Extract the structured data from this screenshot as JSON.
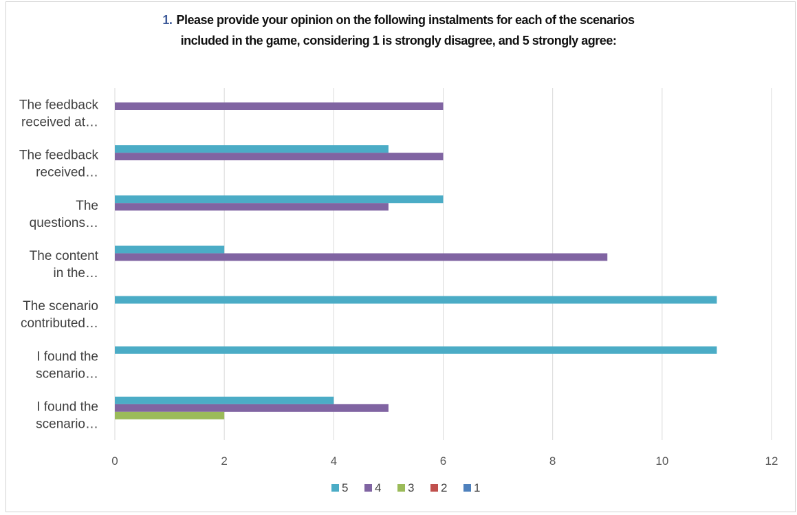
{
  "chart_data": {
    "type": "bar",
    "orientation": "horizontal",
    "title_number": "1.",
    "title_lines": [
      "Please provide your opinion on the following instalments for each of the scenarios",
      "included in the game, considering 1 is strongly disagree, and 5 strongly agree:"
    ],
    "categories": [
      [
        "The feedback",
        "received at…"
      ],
      [
        "The feedback",
        "received…"
      ],
      [
        "The",
        "questions…"
      ],
      [
        "The content",
        "in the…"
      ],
      [
        "The scenario",
        "contributed…"
      ],
      [
        "I found the",
        "scenario…"
      ],
      [
        "I found the",
        "scenario…"
      ]
    ],
    "series": [
      {
        "name": "5",
        "color": "#4bacc6",
        "values": [
          0,
          5,
          6,
          2,
          11,
          11,
          4
        ]
      },
      {
        "name": "4",
        "color": "#8064a2",
        "values": [
          6,
          6,
          5,
          9,
          0,
          0,
          5
        ]
      },
      {
        "name": "3",
        "color": "#9bbb59",
        "values": [
          0,
          0,
          0,
          0,
          0,
          0,
          2
        ]
      },
      {
        "name": "2",
        "color": "#c0504d",
        "values": [
          0,
          0,
          0,
          0,
          0,
          0,
          0
        ]
      },
      {
        "name": "1",
        "color": "#4f81bd",
        "values": [
          0,
          0,
          0,
          0,
          0,
          0,
          0
        ]
      }
    ],
    "xlim": [
      0,
      12
    ],
    "xticks": [
      "0",
      "2",
      "4",
      "6",
      "8",
      "10",
      "12"
    ],
    "grid": true,
    "legend_position": "bottom"
  }
}
